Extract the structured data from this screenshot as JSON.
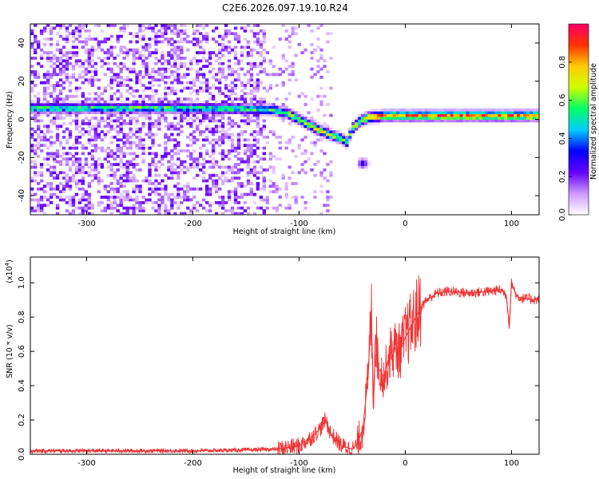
{
  "figure": {
    "title": "C2E6.2026.097.19.10.R24"
  },
  "chart_data": [
    {
      "type": "heatmap",
      "name": "spectrogram",
      "xlabel": "Height of straight line (km)",
      "ylabel": "Frequency (Hz)",
      "xlim": [
        -353,
        126
      ],
      "ylim": [
        -50,
        50
      ],
      "xticks": [
        -300,
        -200,
        -100,
        0,
        100
      ],
      "yticks": [
        -40,
        -20,
        0,
        20,
        40
      ],
      "xtick_labels": [
        "-300",
        "-200",
        "-100",
        "0",
        "100"
      ],
      "ytick_labels": [
        "-40",
        "-20",
        "0",
        "20",
        "40"
      ],
      "colorbar": {
        "label": "Normalized spectral amplitude",
        "range": [
          0,
          1
        ],
        "ticks": [
          0.0,
          0.2,
          0.4,
          0.6,
          0.8
        ],
        "tick_labels": [
          "0.0",
          "0.2",
          "0.4",
          "0.6",
          "0.8"
        ],
        "colormap": [
          "#ffffff",
          "#cc99ff",
          "#6600ff",
          "#0000ff",
          "#00ccff",
          "#00ff66",
          "#ccff00",
          "#ffcc00",
          "#ff3300",
          "#ff0066"
        ]
      },
      "signal_track": {
        "x": [
          -353,
          -300,
          -250,
          -200,
          -150,
          -125,
          -110,
          -100,
          -90,
          -80,
          -70,
          -60,
          -55,
          -50,
          -45,
          -40,
          -35,
          -30,
          -25,
          -20,
          -10,
          0,
          20,
          50,
          80,
          100,
          126
        ],
        "y": [
          6,
          6,
          6,
          6,
          5.5,
          5,
          3,
          0,
          -3,
          -6,
          -8,
          -10,
          -12,
          -5,
          -2,
          0,
          1,
          1.5,
          1.5,
          2,
          2,
          2,
          2,
          2,
          2,
          2,
          2
        ]
      },
      "isolated_blob": {
        "x": -40,
        "y": -23
      }
    },
    {
      "type": "line",
      "name": "snr",
      "xlabel": "Height of straight line (km)",
      "ylabel": "SNR (10 * v/v)",
      "y_exponent_label": "(x10",
      "y_exponent_power": "4",
      "xlim": [
        -353,
        126
      ],
      "ylim": [
        0,
        1.15
      ],
      "xticks": [
        -300,
        -200,
        -100,
        0,
        100
      ],
      "yticks": [
        0.0,
        0.2,
        0.4,
        0.6,
        0.8,
        1.0
      ],
      "xtick_labels": [
        "-300",
        "-200",
        "-100",
        "0",
        "100"
      ],
      "ytick_labels": [
        "0.0",
        "0.2",
        "0.4",
        "0.6",
        "0.8",
        "1.0"
      ],
      "color": "#ee3333",
      "series": [
        {
          "name": "SNR",
          "x": [
            -353,
            -300,
            -250,
            -200,
            -150,
            -120,
            -100,
            -90,
            -80,
            -75,
            -70,
            -60,
            -50,
            -45,
            -40,
            -35,
            -32,
            -30,
            -28,
            -25,
            -20,
            -15,
            -10,
            -5,
            0,
            5,
            10,
            15,
            20,
            30,
            40,
            60,
            80,
            90,
            95,
            98,
            100,
            105,
            110,
            126
          ],
          "y": [
            0.02,
            0.02,
            0.02,
            0.02,
            0.025,
            0.03,
            0.05,
            0.09,
            0.15,
            0.2,
            0.12,
            0.05,
            0.03,
            0.06,
            0.15,
            0.45,
            0.85,
            0.3,
            0.7,
            0.5,
            0.45,
            0.58,
            0.62,
            0.6,
            0.68,
            0.74,
            0.8,
            0.86,
            0.9,
            0.94,
            0.95,
            0.94,
            0.95,
            0.96,
            0.93,
            0.75,
            1.0,
            0.92,
            0.91,
            0.9
          ]
        }
      ]
    }
  ]
}
